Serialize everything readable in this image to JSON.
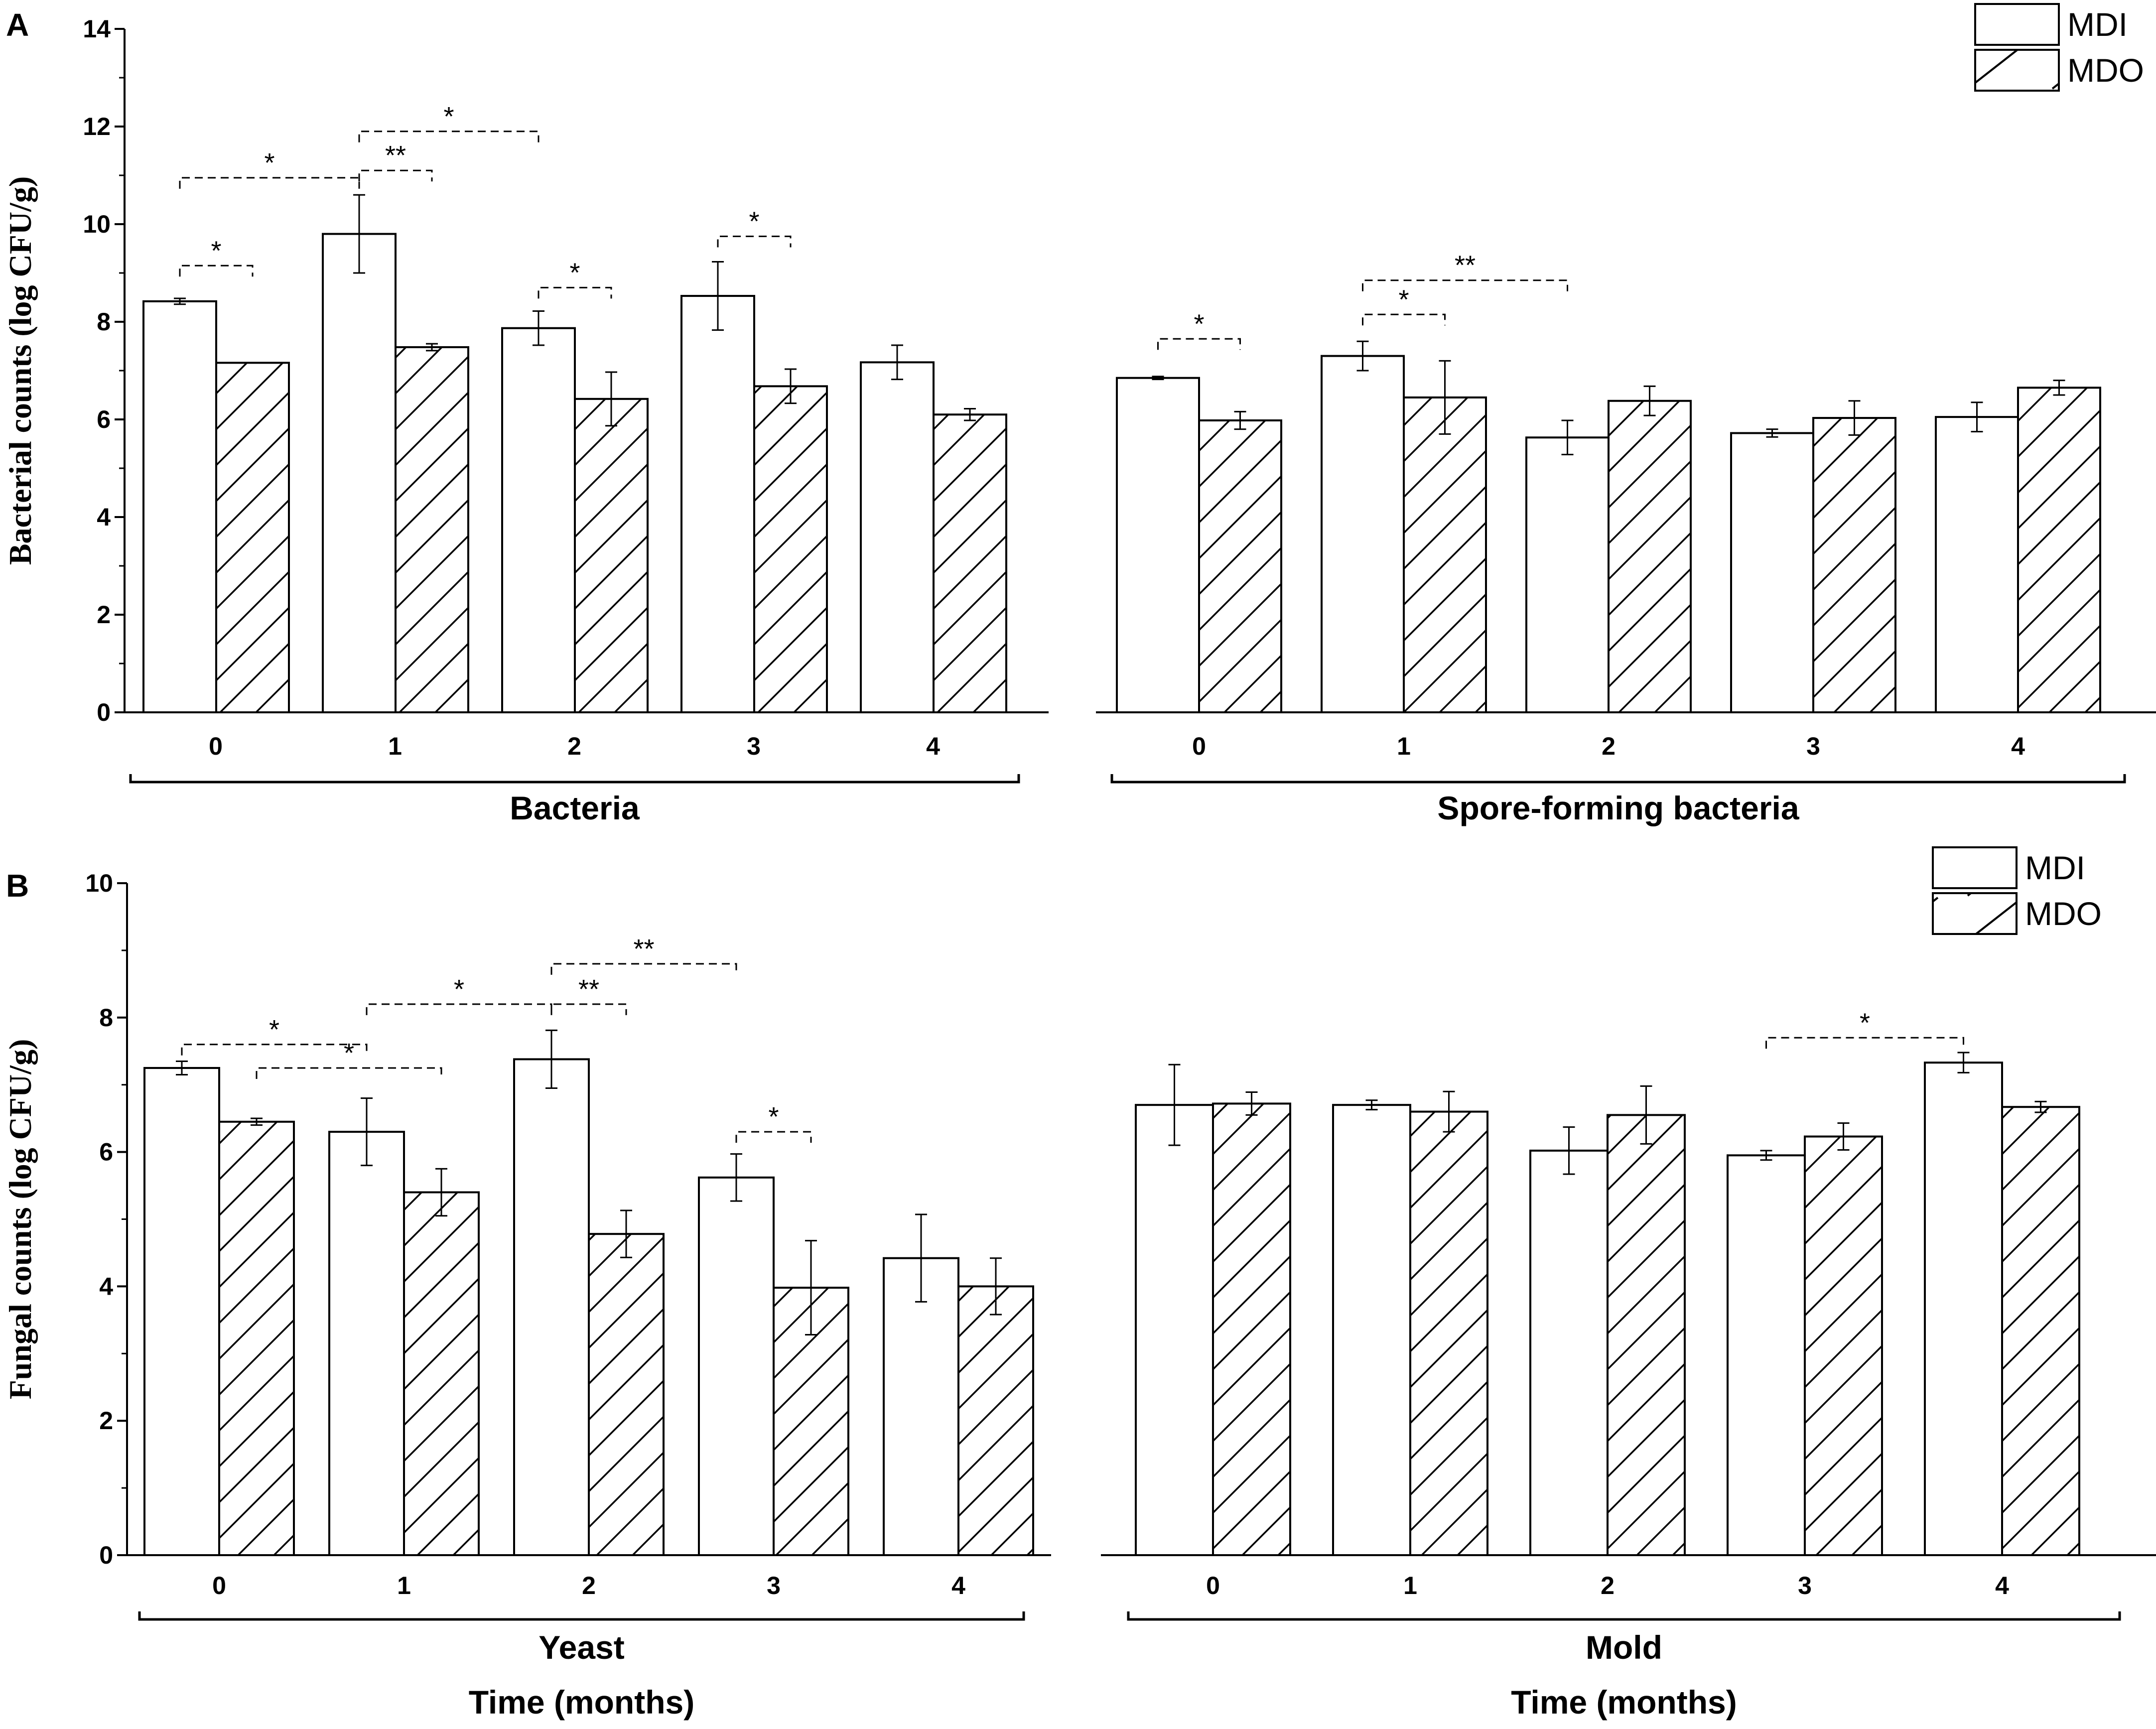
{
  "colors": {
    "ink": "#000000",
    "bar_fill": "#ffffff"
  },
  "chart_data": [
    {
      "type": "bar",
      "panel": "A",
      "ylabel": "Bacterial counts (log CFU/g)",
      "ylim": [
        0,
        14
      ],
      "yticks": [
        0,
        2,
        4,
        6,
        8,
        10,
        12,
        14
      ],
      "legend": [
        "MDI",
        "MDO"
      ],
      "groups": [
        {
          "label": "Bacteria",
          "categories": [
            "0",
            "1",
            "2",
            "3",
            "4"
          ],
          "series": [
            {
              "name": "MDI",
              "values": [
                8.42,
                9.8,
                7.87,
                8.53,
                7.17
              ],
              "errors": [
                0.06,
                0.8,
                0.35,
                0.7,
                0.35
              ]
            },
            {
              "name": "MDO",
              "values": [
                7.16,
                7.48,
                6.42,
                6.68,
                6.1
              ],
              "errors": [
                0.0,
                0.07,
                0.55,
                0.35,
                0.12
              ]
            }
          ],
          "significance": [
            {
              "from": [
                0,
                0
              ],
              "to": [
                0,
                1
              ],
              "level": 9.15,
              "label": "*"
            },
            {
              "from": [
                0,
                0
              ],
              "to": [
                1,
                0
              ],
              "level": 10.95,
              "label": "*"
            },
            {
              "from": [
                1,
                0
              ],
              "to": [
                1,
                1
              ],
              "level": 11.1,
              "label": "**"
            },
            {
              "from": [
                1,
                0
              ],
              "to": [
                2,
                0
              ],
              "level": 11.9,
              "label": "*"
            },
            {
              "from": [
                2,
                0
              ],
              "to": [
                2,
                1
              ],
              "level": 8.7,
              "label": "*"
            },
            {
              "from": [
                3,
                0
              ],
              "to": [
                3,
                1
              ],
              "level": 9.75,
              "label": "*"
            }
          ]
        },
        {
          "label": "Spore-forming bacteria",
          "categories": [
            "0",
            "1",
            "2",
            "3",
            "4"
          ],
          "series": [
            {
              "name": "MDI",
              "values": [
                6.85,
                7.3,
                5.63,
                5.72,
                6.05
              ],
              "errors": [
                0.03,
                0.3,
                0.35,
                0.08,
                0.3
              ]
            },
            {
              "name": "MDO",
              "values": [
                5.98,
                6.45,
                6.38,
                6.03,
                6.65
              ],
              "errors": [
                0.18,
                0.75,
                0.3,
                0.35,
                0.15
              ]
            }
          ],
          "significance": [
            {
              "from": [
                0,
                0
              ],
              "to": [
                0,
                1
              ],
              "level": 7.65,
              "label": "*"
            },
            {
              "from": [
                1,
                0
              ],
              "to": [
                1,
                1
              ],
              "level": 8.15,
              "label": "*"
            },
            {
              "from": [
                1,
                0
              ],
              "to": [
                2,
                0
              ],
              "level": 8.85,
              "label": "**"
            }
          ]
        }
      ]
    },
    {
      "type": "bar",
      "panel": "B",
      "ylabel": "Fungal counts (log CFU/g)",
      "ylim": [
        0,
        10
      ],
      "yticks": [
        0,
        2,
        4,
        6,
        8,
        10
      ],
      "legend": [
        "MDI",
        "MDO"
      ],
      "groups": [
        {
          "label": "Yeast",
          "xlabel": "Time (months)",
          "categories": [
            "0",
            "1",
            "2",
            "3",
            "4"
          ],
          "series": [
            {
              "name": "MDI",
              "values": [
                7.25,
                6.3,
                7.38,
                5.62,
                4.42
              ],
              "errors": [
                0.1,
                0.5,
                0.43,
                0.35,
                0.65
              ]
            },
            {
              "name": "MDO",
              "values": [
                6.45,
                5.4,
                4.78,
                3.98,
                4.0
              ],
              "errors": [
                0.05,
                0.35,
                0.35,
                0.7,
                0.42
              ]
            }
          ],
          "significance": [
            {
              "from": [
                0,
                0
              ],
              "to": [
                1,
                0
              ],
              "level": 7.6,
              "label": "*"
            },
            {
              "from": [
                0,
                1
              ],
              "to": [
                1,
                1
              ],
              "level": 7.25,
              "label": "*"
            },
            {
              "from": [
                1,
                0
              ],
              "to": [
                2,
                0
              ],
              "level": 8.2,
              "label": "*"
            },
            {
              "from": [
                2,
                0
              ],
              "to": [
                2,
                1
              ],
              "level": 8.2,
              "label": "**"
            },
            {
              "from": [
                2,
                0
              ],
              "to": [
                3,
                0
              ],
              "level": 8.8,
              "label": "**"
            },
            {
              "from": [
                3,
                0
              ],
              "to": [
                3,
                1
              ],
              "level": 6.3,
              "label": "*"
            }
          ]
        },
        {
          "label": "Mold",
          "xlabel": "Time (months)",
          "categories": [
            "0",
            "1",
            "2",
            "3",
            "4"
          ],
          "series": [
            {
              "name": "MDI",
              "values": [
                6.7,
                6.7,
                6.02,
                5.95,
                7.33
              ],
              "errors": [
                0.6,
                0.07,
                0.35,
                0.07,
                0.15
              ]
            },
            {
              "name": "MDO",
              "values": [
                6.72,
                6.6,
                6.55,
                6.23,
                6.67
              ],
              "errors": [
                0.17,
                0.3,
                0.43,
                0.2,
                0.08
              ]
            }
          ],
          "significance": [
            {
              "from": [
                3,
                0
              ],
              "to": [
                4,
                0
              ],
              "level": 7.7,
              "label": "*"
            }
          ]
        }
      ]
    }
  ]
}
